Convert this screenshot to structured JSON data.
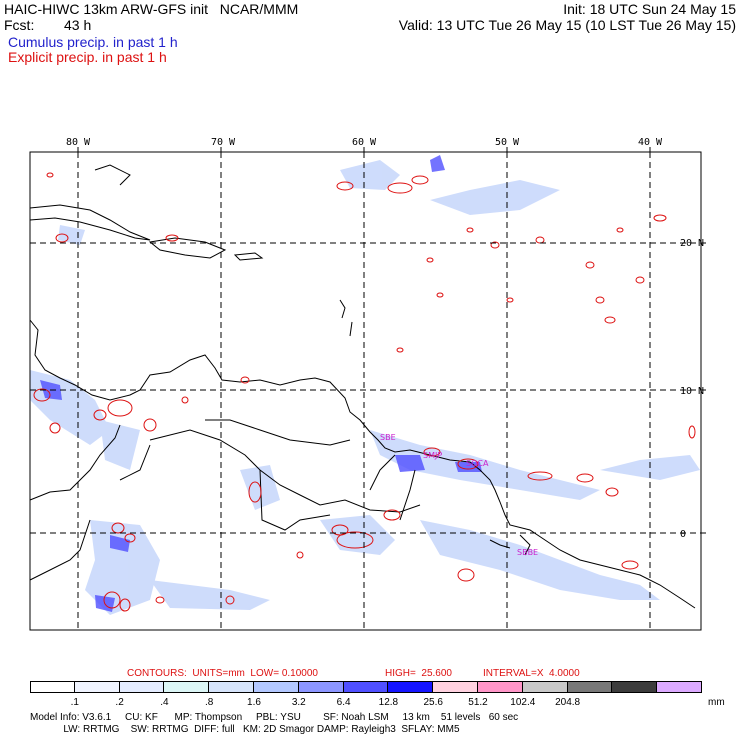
{
  "header": {
    "title": "HAIC-HIWC 13km ARW-GFS init   NCAR/MMM",
    "init": "Init: 18 UTC Sun 24 May 15",
    "fcst_label": "Fcst:",
    "fcst_value": "43 h",
    "valid": "Valid: 13 UTC Tue 26 May 15 (10 LST Tue 26 May 15)",
    "cumulus": "Cumulus precip. in past 1 h",
    "explicit": "Explicit precip. in past 1 h"
  },
  "map": {
    "lon_labels": [
      "80 W",
      "70 W",
      "60 W",
      "50 W",
      "40 W"
    ],
    "lat_labels": [
      "20 N",
      "10 N",
      "0"
    ],
    "station_labels": [
      "SMJP",
      "SOCA",
      "SBBE",
      "SBE"
    ],
    "colors": {
      "cumulus": "#2222cc",
      "explicit": "#dd1111",
      "coast": "#000000"
    }
  },
  "contours": {
    "prefix": "CONTOURS:  UNITS=mm  LOW= 0.10000",
    "high": "HIGH=  25.600",
    "interval": "INTERVAL=X  4.0000"
  },
  "colorbar": {
    "unit": "mm",
    "labels": [
      ".1",
      ".2",
      ".4",
      ".8",
      "1.6",
      "3.2",
      "6.4",
      "12.8",
      "25.6",
      "51.2",
      "102.4",
      "204.8"
    ],
    "colors": [
      "#ffffff",
      "#f0f4ff",
      "#e4ecff",
      "#dcf6f6",
      "#d6e4fb",
      "#b3c8ff",
      "#8c96ff",
      "#5050ff",
      "#1414ff",
      "#ffd2e0",
      "#ff96c8",
      "#c8c8c8",
      "#787878",
      "#3c3c3c",
      "#dcaaff"
    ]
  },
  "model_info": {
    "line1": "Model Info: V3.6.1     CU: KF      MP: Thompson     PBL: YSU        SF: Noah LSM     13 km    51 levels   60 sec",
    "line2": "            LW: RRTMG    SW: RRTMG  DIFF: full   KM: 2D Smagor DAMP: Rayleigh3  SFLAY: MM5"
  }
}
